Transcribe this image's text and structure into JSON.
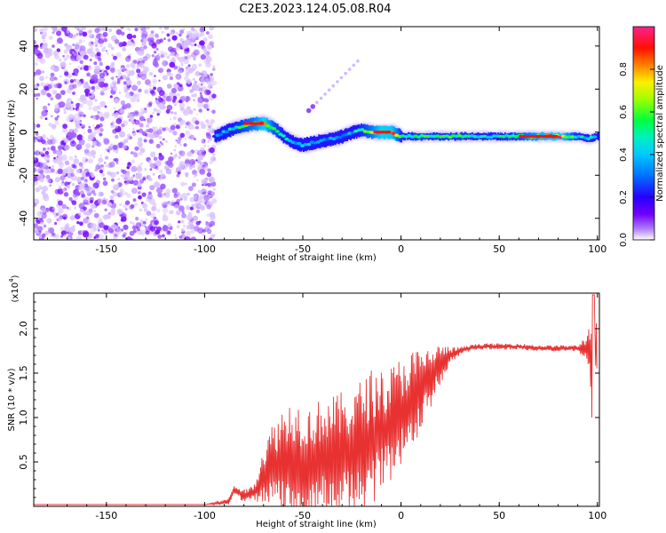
{
  "title": "C2E3.2023.124.05.08.R04",
  "chart_data": [
    {
      "type": "heatmap",
      "xlabel": "Height of straight line (km)",
      "ylabel": "Frequency (Hz)",
      "xlim": [
        -187,
        101
      ],
      "ylim": [
        -50,
        49
      ],
      "xticks": [
        -150,
        -100,
        -50,
        0,
        50,
        100
      ],
      "yticks": [
        -40,
        -20,
        0,
        20,
        40
      ],
      "colorbar": {
        "label": "Normalized spectral amplitude",
        "range": [
          0,
          1
        ],
        "ticks": [
          "0.0",
          "0.2",
          "0.4",
          "0.6",
          "0.8"
        ],
        "tick_values": [
          0.0,
          0.2,
          0.4,
          0.6,
          0.8
        ],
        "colormap": [
          "#ffffff",
          "#8a00ff",
          "#2800ff",
          "#0090ff",
          "#00e0e0",
          "#00ff60",
          "#a0ff00",
          "#ffff00",
          "#ff8000",
          "#ff0000",
          "#ff2090"
        ]
      },
      "noise_region": {
        "x_from": -187,
        "x_to": -95,
        "amplitude": 0.12
      },
      "ridge": {
        "x": [
          -95,
          -90,
          -85,
          -80,
          -75,
          -70,
          -65,
          -60,
          -55,
          -50,
          -45,
          -40,
          -35,
          -30,
          -25,
          -20,
          -15,
          -10,
          -5,
          0,
          5,
          10,
          20,
          30,
          40,
          50,
          60,
          70,
          80,
          90,
          95,
          100
        ],
        "freq": [
          -2,
          0,
          2,
          3,
          4,
          4,
          2,
          -2,
          -5,
          -6,
          -5,
          -4,
          -3,
          -2,
          0,
          1,
          0,
          0,
          0,
          -2,
          -2,
          -2,
          -2,
          -2,
          -2,
          -2,
          -2,
          -2,
          -2,
          -2,
          -3,
          -2
        ],
        "amplitude": [
          0.3,
          0.4,
          0.5,
          0.6,
          0.7,
          0.95,
          0.6,
          0.5,
          0.45,
          0.4,
          0.4,
          0.4,
          0.35,
          0.35,
          0.4,
          0.55,
          0.7,
          0.95,
          0.9,
          0.5,
          0.55,
          0.55,
          0.55,
          0.55,
          0.5,
          0.5,
          0.6,
          0.8,
          0.95,
          0.5,
          0.45,
          0.5
        ]
      },
      "streak": {
        "x": [
          -47,
          -22
        ],
        "freq": [
          10,
          33
        ]
      }
    },
    {
      "type": "line",
      "xlabel": "Height of straight line (km)",
      "ylabel": "SNR (10 * v/v)",
      "yscale_label": "(x10",
      "yscale_exp": "4",
      "yscale_close": ")",
      "xlim": [
        -187,
        101
      ],
      "ylim": [
        0,
        2.4
      ],
      "xticks": [
        -150,
        -100,
        -50,
        0,
        50,
        100
      ],
      "yticks": [
        "0.5",
        "1.0",
        "1.5",
        "2.0"
      ],
      "ytick_values": [
        0.5,
        1.0,
        1.5,
        2.0
      ],
      "color": "#e83232",
      "series": [
        {
          "name": "SNR",
          "x": [
            -187,
            -150,
            -100,
            -88,
            -85,
            -80,
            -75,
            -70,
            -65,
            -60,
            -55,
            -50,
            -45,
            -40,
            -35,
            -30,
            -25,
            -20,
            -15,
            -10,
            -5,
            0,
            5,
            10,
            15,
            20,
            25,
            30,
            35,
            40,
            50,
            60,
            70,
            80,
            90,
            95,
            98,
            100
          ],
          "base": [
            0.02,
            0.02,
            0.02,
            0.05,
            0.18,
            0.12,
            0.15,
            0.35,
            0.45,
            0.5,
            0.55,
            0.5,
            0.5,
            0.55,
            0.55,
            0.6,
            0.6,
            0.7,
            0.75,
            0.85,
            0.9,
            1.05,
            1.15,
            1.3,
            1.45,
            1.6,
            1.7,
            1.75,
            1.78,
            1.8,
            1.8,
            1.8,
            1.78,
            1.78,
            1.78,
            1.78,
            1.75,
            1.8
          ],
          "spread": [
            0.0,
            0.0,
            0.0,
            0.03,
            0.06,
            0.06,
            0.08,
            0.3,
            0.45,
            0.55,
            0.6,
            0.55,
            0.55,
            0.6,
            0.6,
            0.6,
            0.6,
            0.65,
            0.7,
            0.6,
            0.6,
            0.55,
            0.55,
            0.4,
            0.3,
            0.2,
            0.08,
            0.04,
            0.03,
            0.03,
            0.03,
            0.03,
            0.03,
            0.03,
            0.03,
            0.15,
            0.6,
            0.2
          ]
        }
      ]
    }
  ]
}
